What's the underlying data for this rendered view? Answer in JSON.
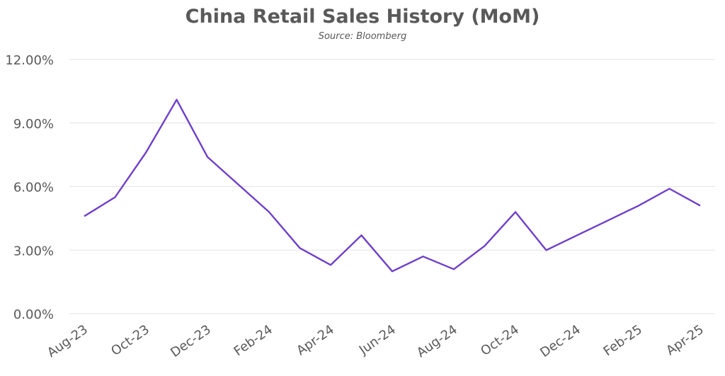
{
  "chart_data": {
    "type": "line",
    "title": "China Retail Sales History (MoM)",
    "subtitle": "Source: Bloomberg",
    "xlabel": "",
    "ylabel": "",
    "ylim": [
      0,
      12
    ],
    "yticks": [
      "0.00%",
      "3.00%",
      "6.00%",
      "9.00%",
      "12.00%"
    ],
    "ytick_values": [
      0,
      3,
      6,
      9,
      12
    ],
    "grid": true,
    "line_color": "#6f3fc9",
    "categories": [
      "Aug-23",
      "Sep-23",
      "Oct-23",
      "Nov-23",
      "Dec-23",
      "Jan-24",
      "Feb-24",
      "Mar-24",
      "Apr-24",
      "May-24",
      "Jun-24",
      "Jul-24",
      "Aug-24",
      "Sep-24",
      "Oct-24",
      "Nov-24",
      "Dec-24",
      "Jan-25",
      "Feb-25",
      "Mar-25",
      "Apr-25"
    ],
    "xtick_labels": [
      "Aug-23",
      "Oct-23",
      "Dec-23",
      "Feb-24",
      "Apr-24",
      "Jun-24",
      "Aug-24",
      "Oct-24",
      "Dec-24",
      "Feb-25",
      "Apr-25"
    ],
    "series": [
      {
        "values": [
          4.6,
          5.5,
          7.6,
          10.1,
          7.4,
          6.1,
          4.8,
          3.1,
          2.3,
          3.7,
          2.0,
          2.7,
          2.1,
          3.2,
          4.8,
          3.0,
          3.7,
          4.4,
          5.1,
          5.9,
          5.1
        ]
      }
    ]
  }
}
